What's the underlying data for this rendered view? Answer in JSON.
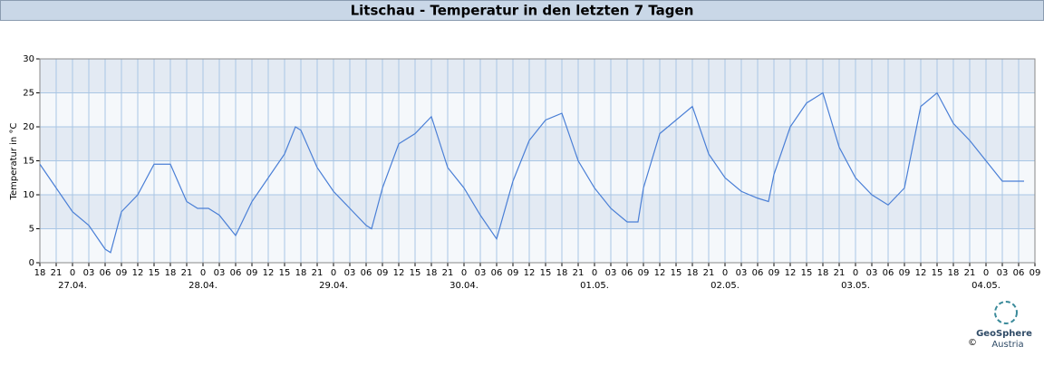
{
  "chart_data": {
    "type": "line",
    "title": "Litschau - Temperatur in den letzten 7 Tagen",
    "y_label": "Temperatur in °C",
    "x": [
      0,
      3,
      6,
      9,
      12,
      13,
      15,
      18,
      21,
      24,
      27,
      29,
      31,
      33,
      36,
      39,
      42,
      45,
      47,
      48,
      51,
      54,
      57,
      60,
      61,
      63,
      66,
      69,
      72,
      75,
      78,
      81,
      84,
      87,
      90,
      93,
      96,
      99,
      102,
      105,
      108,
      110,
      111,
      114,
      117,
      120,
      123,
      126,
      129,
      132,
      134,
      135,
      138,
      141,
      144,
      147,
      150,
      153,
      156,
      159,
      162,
      165,
      168,
      171,
      174,
      177,
      180,
      181
    ],
    "series": [
      {
        "name": "Temperatur",
        "color": "#4a7fd6",
        "values": [
          14.5,
          11,
          7.5,
          5.5,
          2,
          1.5,
          7.5,
          10,
          14.5,
          14.5,
          9,
          8,
          8,
          7,
          4,
          9,
          12.5,
          16,
          20,
          19.5,
          14,
          10.5,
          8,
          5.5,
          5,
          11,
          17.5,
          19,
          21.5,
          14,
          11,
          7,
          3.5,
          12,
          18,
          21,
          22,
          15,
          11,
          8,
          6,
          6,
          11,
          19,
          21,
          23,
          16,
          12.5,
          10.5,
          9.5,
          9,
          13,
          20,
          23.5,
          25,
          17,
          12.5,
          10,
          8.5,
          11,
          23,
          25,
          20.5,
          18,
          15,
          12,
          12,
          12
        ]
      }
    ],
    "xlim": [
      0,
      183
    ],
    "xticks": [
      {
        "value": 0,
        "label": "18"
      },
      {
        "value": 3,
        "label": "21"
      },
      {
        "value": 6,
        "label": "0"
      },
      {
        "value": 9,
        "label": "03"
      },
      {
        "value": 12,
        "label": "06"
      },
      {
        "value": 15,
        "label": "09"
      },
      {
        "value": 18,
        "label": "12"
      },
      {
        "value": 21,
        "label": "15"
      },
      {
        "value": 24,
        "label": "18"
      },
      {
        "value": 27,
        "label": "21"
      },
      {
        "value": 30,
        "label": "0"
      },
      {
        "value": 33,
        "label": "03"
      },
      {
        "value": 36,
        "label": "06"
      },
      {
        "value": 39,
        "label": "09"
      },
      {
        "value": 42,
        "label": "12"
      },
      {
        "value": 45,
        "label": "15"
      },
      {
        "value": 48,
        "label": "18"
      },
      {
        "value": 51,
        "label": "21"
      },
      {
        "value": 54,
        "label": "0"
      },
      {
        "value": 57,
        "label": "03"
      },
      {
        "value": 60,
        "label": "06"
      },
      {
        "value": 63,
        "label": "09"
      },
      {
        "value": 66,
        "label": "12"
      },
      {
        "value": 69,
        "label": "15"
      },
      {
        "value": 72,
        "label": "18"
      },
      {
        "value": 75,
        "label": "21"
      },
      {
        "value": 78,
        "label": "0"
      },
      {
        "value": 81,
        "label": "03"
      },
      {
        "value": 84,
        "label": "06"
      },
      {
        "value": 87,
        "label": "09"
      },
      {
        "value": 90,
        "label": "12"
      },
      {
        "value": 93,
        "label": "15"
      },
      {
        "value": 96,
        "label": "18"
      },
      {
        "value": 99,
        "label": "21"
      },
      {
        "value": 102,
        "label": "0"
      },
      {
        "value": 105,
        "label": "03"
      },
      {
        "value": 108,
        "label": "06"
      },
      {
        "value": 111,
        "label": "09"
      },
      {
        "value": 114,
        "label": "12"
      },
      {
        "value": 117,
        "label": "15"
      },
      {
        "value": 120,
        "label": "18"
      },
      {
        "value": 123,
        "label": "21"
      },
      {
        "value": 126,
        "label": "0"
      },
      {
        "value": 129,
        "label": "03"
      },
      {
        "value": 132,
        "label": "06"
      },
      {
        "value": 135,
        "label": "09"
      },
      {
        "value": 138,
        "label": "12"
      },
      {
        "value": 141,
        "label": "15"
      },
      {
        "value": 144,
        "label": "18"
      },
      {
        "value": 147,
        "label": "21"
      },
      {
        "value": 150,
        "label": "0"
      },
      {
        "value": 153,
        "label": "03"
      },
      {
        "value": 156,
        "label": "06"
      },
      {
        "value": 159,
        "label": "09"
      },
      {
        "value": 162,
        "label": "12"
      },
      {
        "value": 165,
        "label": "15"
      },
      {
        "value": 168,
        "label": "18"
      },
      {
        "value": 171,
        "label": "21"
      },
      {
        "value": 174,
        "label": "0"
      },
      {
        "value": 177,
        "label": "03"
      },
      {
        "value": 180,
        "label": "06"
      },
      {
        "value": 183,
        "label": "09"
      }
    ],
    "x_date_labels": [
      {
        "value": 6,
        "label": "27.04."
      },
      {
        "value": 30,
        "label": "28.04."
      },
      {
        "value": 54,
        "label": "29.04."
      },
      {
        "value": 78,
        "label": "30.04."
      },
      {
        "value": 102,
        "label": "01.05."
      },
      {
        "value": 126,
        "label": "02.05."
      },
      {
        "value": 150,
        "label": "03.05."
      },
      {
        "value": 174,
        "label": "04.05."
      }
    ],
    "ylim": [
      0,
      30
    ],
    "yticks": [
      0,
      5,
      10,
      15,
      20,
      25,
      30
    ],
    "grid": true,
    "logo": {
      "name": "GeoSphere",
      "sub": "Austria",
      "copyright": "©"
    }
  }
}
